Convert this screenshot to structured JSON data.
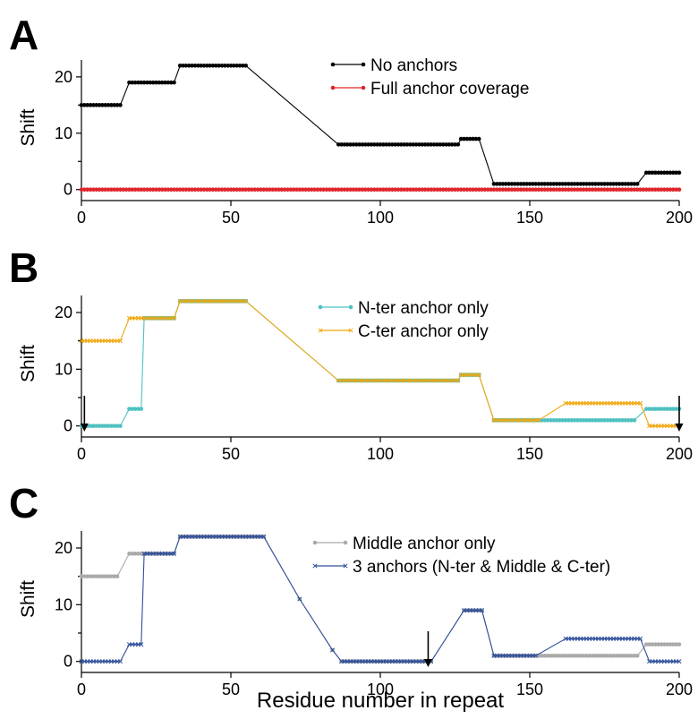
{
  "figure": {
    "xlabel": "Residue number in repeat",
    "colors": {
      "no_anchors": "#000000",
      "full_coverage": "#e0262b",
      "nter": "#4fc1c0",
      "cter": "#f0a70f",
      "middle": "#aaaaaa",
      "three": "#2f4f9a",
      "arrow": "#000000"
    }
  },
  "chart_data": [
    {
      "panel": "A",
      "type": "line",
      "ylabel": "Shift",
      "xlim": [
        0,
        200
      ],
      "ylim": [
        -1,
        23
      ],
      "xticks": [
        0,
        50,
        100,
        150,
        200
      ],
      "yticks": [
        0,
        10,
        20
      ],
      "legend_position": "top-right",
      "series": [
        {
          "name": "No anchors",
          "color_key": "no_anchors",
          "marker": "dot",
          "points": [
            [
              0,
              15
            ],
            [
              13,
              15
            ],
            [
              16,
              19
            ],
            [
              19,
              19
            ],
            [
              20,
              19
            ],
            [
              31,
              19
            ],
            [
              33,
              22
            ],
            [
              55,
              22
            ],
            [
              86,
              8
            ],
            [
              126,
              8
            ],
            [
              127,
              9
            ],
            [
              133,
              9
            ],
            [
              138,
              1
            ],
            [
              153,
              1
            ],
            [
              155,
              1
            ],
            [
              156,
              1
            ],
            [
              159,
              1
            ],
            [
              160,
              1
            ],
            [
              186,
              1
            ],
            [
              189,
              3
            ],
            [
              200,
              3
            ]
          ]
        },
        {
          "name": "Full anchor coverage",
          "color_key": "full_coverage",
          "marker": "dot",
          "points": [
            [
              0,
              0
            ],
            [
              200,
              0
            ]
          ]
        }
      ],
      "arrows": []
    },
    {
      "panel": "B",
      "type": "line",
      "ylabel": "Shift",
      "xlim": [
        0,
        200
      ],
      "ylim": [
        -1,
        23
      ],
      "xticks": [
        0,
        50,
        100,
        150,
        200
      ],
      "yticks": [
        0,
        10,
        20
      ],
      "legend_position": "top-right",
      "series": [
        {
          "name": "N-ter anchor only",
          "color_key": "nter",
          "marker": "dot",
          "points": [
            [
              0,
              0
            ],
            [
              13,
              0
            ],
            [
              16,
              3
            ],
            [
              20,
              3
            ],
            [
              21,
              19
            ],
            [
              31,
              19
            ],
            [
              33,
              22
            ],
            [
              55,
              22
            ],
            [
              86,
              8
            ],
            [
              126,
              8
            ],
            [
              127,
              9
            ],
            [
              133,
              9
            ],
            [
              138,
              1
            ],
            [
              153,
              1
            ],
            [
              155,
              1
            ],
            [
              159,
              1
            ],
            [
              160,
              1
            ],
            [
              185,
              1
            ],
            [
              189,
              3
            ],
            [
              200,
              3
            ]
          ]
        },
        {
          "name": "C-ter anchor only",
          "color_key": "cter",
          "marker": "x",
          "points": [
            [
              0,
              15
            ],
            [
              13,
              15
            ],
            [
              16,
              19
            ],
            [
              20,
              19
            ],
            [
              21,
              19
            ],
            [
              31,
              19
            ],
            [
              33,
              22
            ],
            [
              55,
              22
            ],
            [
              86,
              8
            ],
            [
              126,
              8
            ],
            [
              127,
              9
            ],
            [
              133,
              9
            ],
            [
              138,
              1
            ],
            [
              153,
              1
            ],
            [
              162,
              4
            ],
            [
              187,
              4
            ],
            [
              190,
              0
            ],
            [
              200,
              0
            ]
          ]
        }
      ],
      "arrows": [
        1,
        200
      ]
    },
    {
      "panel": "C",
      "type": "line",
      "ylabel": "Shift",
      "xlim": [
        0,
        200
      ],
      "ylim": [
        -1,
        23
      ],
      "xticks": [
        0,
        50,
        100,
        150,
        200
      ],
      "yticks": [
        0,
        10,
        20
      ],
      "legend_position": "top-right",
      "series": [
        {
          "name": "Middle anchor only",
          "color_key": "middle",
          "marker": "dot",
          "points": [
            [
              0,
              15
            ],
            [
              12,
              15
            ],
            [
              16,
              19
            ],
            [
              19,
              19
            ],
            [
              21,
              19
            ],
            [
              31,
              19
            ],
            [
              33,
              22
            ],
            [
              61,
              22
            ],
            [
              73,
              11
            ],
            [
              84,
              2
            ],
            [
              87,
              0
            ],
            [
              117,
              0
            ],
            [
              128,
              9
            ],
            [
              134,
              9
            ],
            [
              138,
              1
            ],
            [
              152,
              1
            ],
            [
              153,
              1
            ],
            [
              186,
              1
            ],
            [
              189,
              3
            ],
            [
              200,
              3
            ]
          ]
        },
        {
          "name": "3 anchors (N-ter & Middle & C-ter)",
          "color_key": "three",
          "marker": "x",
          "points": [
            [
              0,
              0
            ],
            [
              13,
              0
            ],
            [
              16,
              3
            ],
            [
              20,
              3
            ],
            [
              21,
              19
            ],
            [
              31,
              19
            ],
            [
              33,
              22
            ],
            [
              61,
              22
            ],
            [
              73,
              11
            ],
            [
              84,
              2
            ],
            [
              87,
              0
            ],
            [
              117,
              0
            ],
            [
              128,
              9
            ],
            [
              134,
              9
            ],
            [
              138,
              1
            ],
            [
              152,
              1
            ],
            [
              162,
              4
            ],
            [
              187,
              4
            ],
            [
              190,
              0
            ],
            [
              200,
              0
            ]
          ]
        }
      ],
      "arrows": [
        116
      ]
    }
  ]
}
